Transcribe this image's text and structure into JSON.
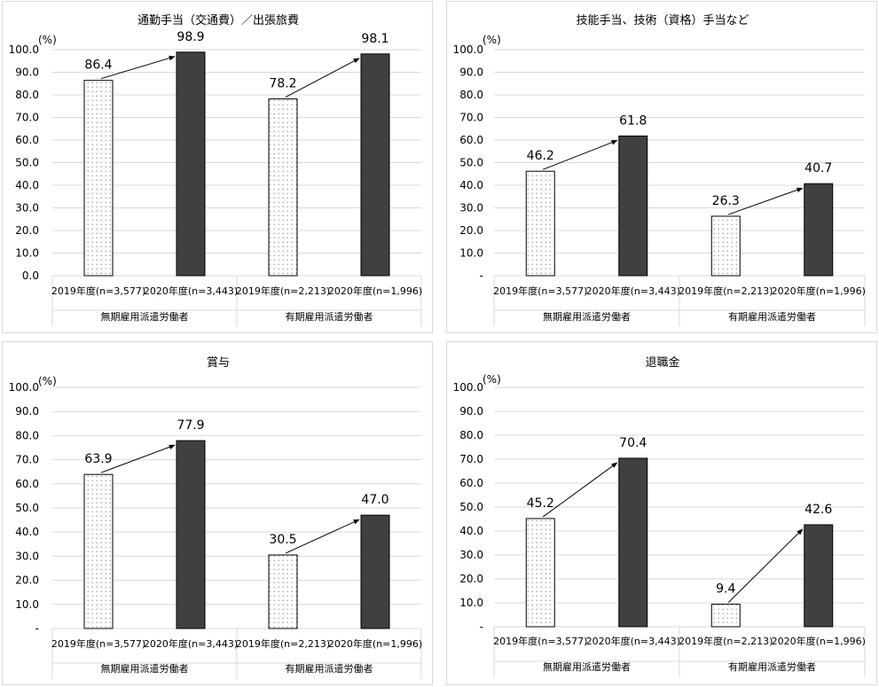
{
  "colors": {
    "grid": "#d9d9d9",
    "bar2020": "#404040",
    "axis": "#bfbfbf"
  },
  "chart_data": [
    {
      "type": "bar",
      "title": "通勤手当（交通費）／出張旅費",
      "unit_label": "(%)",
      "yticks": [
        "0.0",
        "10.0",
        "20.0",
        "30.0",
        "40.0",
        "50.0",
        "60.0",
        "70.0",
        "80.0",
        "90.0",
        "100.0"
      ],
      "ylim": [
        0,
        100
      ],
      "groups": [
        "無期雇用派遣労働者",
        "有期雇用派遣労働者"
      ],
      "categories": [
        "2019年度(n=3,577)",
        "2020年度(n=3,443)",
        "2019年度(n=2,213)",
        "2020年度(n=1,996)"
      ],
      "values": [
        86.4,
        98.9,
        78.2,
        98.1
      ],
      "labels": [
        "86.4",
        "98.9",
        "78.2",
        "98.1"
      ]
    },
    {
      "type": "bar",
      "title": "技能手当、技術（資格）手当など",
      "unit_label": "(%)",
      "yticks": [
        "-",
        "10.0",
        "20.0",
        "30.0",
        "40.0",
        "50.0",
        "60.0",
        "70.0",
        "80.0",
        "90.0",
        "100.0"
      ],
      "ylim": [
        0,
        100
      ],
      "groups": [
        "無期雇用派遣労働者",
        "有期雇用派遣労働者"
      ],
      "categories": [
        "2019年度(n=3,577)",
        "2020年度(n=3,443)",
        "2019年度(n=2,213)",
        "2020年度(n=1,996)"
      ],
      "values": [
        46.2,
        61.8,
        26.3,
        40.7
      ],
      "labels": [
        "46.2",
        "61.8",
        "26.3",
        "40.7"
      ]
    },
    {
      "type": "bar",
      "title": "賞与",
      "unit_label": "(%)",
      "yticks": [
        "-",
        "10.0",
        "20.0",
        "30.0",
        "40.0",
        "50.0",
        "60.0",
        "70.0",
        "80.0",
        "90.0",
        "100.0"
      ],
      "ylim": [
        0,
        100
      ],
      "groups": [
        "無期雇用派遣労働者",
        "有期雇用派遣労働者"
      ],
      "categories": [
        "2019年度(n=3,577)",
        "2020年度(n=3,443)",
        "2019年度(n=2,213)",
        "2020年度(n=1,996)"
      ],
      "values": [
        63.9,
        77.9,
        30.5,
        47.0
      ],
      "labels": [
        "63.9",
        "77.9",
        "30.5",
        "47.0"
      ]
    },
    {
      "type": "bar",
      "title": "退職金",
      "unit_label": "(%)",
      "yticks": [
        "-",
        "10.0",
        "20.0",
        "30.0",
        "40.0",
        "50.0",
        "60.0",
        "70.0",
        "80.0",
        "90.0",
        "100.0"
      ],
      "ylim": [
        0,
        100
      ],
      "groups": [
        "無期雇用派遣労働者",
        "有期雇用派遣労働者"
      ],
      "categories": [
        "2019年度(n=3,577)",
        "2020年度(n=3,443)",
        "2019年度(n=2,213)",
        "2020年度(n=1,996)"
      ],
      "values": [
        45.2,
        70.4,
        9.4,
        42.6
      ],
      "labels": [
        "45.2",
        "70.4",
        "9.4",
        "42.6"
      ]
    }
  ]
}
